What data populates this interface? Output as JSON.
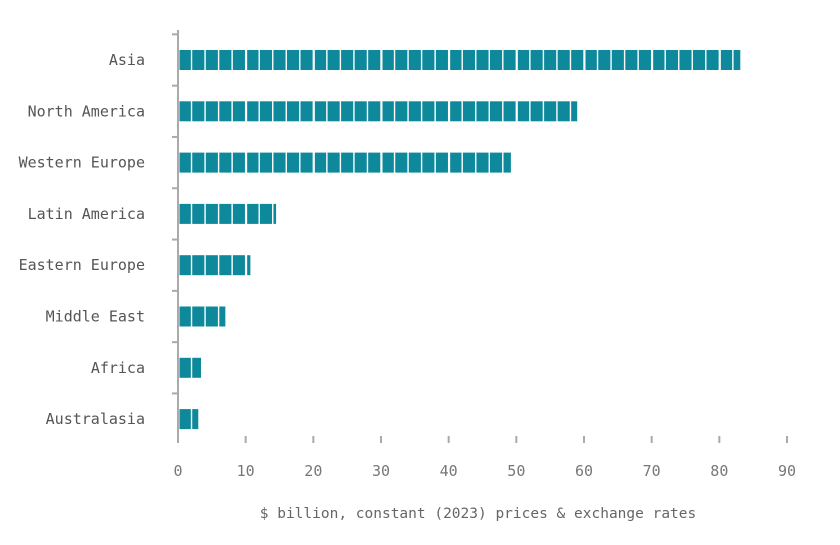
{
  "chart_data": {
    "type": "bar",
    "orientation": "horizontal",
    "title": "",
    "categories": [
      "Asia",
      "North America",
      "Western Europe",
      "Latin America",
      "Eastern Europe",
      "Middle East",
      "Africa",
      "Australasia"
    ],
    "values": [
      83.2,
      59.1,
      49.3,
      14.6,
      10.8,
      7.1,
      3.5,
      3.1
    ],
    "xlabel": "$ billion, constant (2023) prices & exchange rates",
    "ylabel": "",
    "xlim": [
      0,
      90
    ],
    "xticks": [
      "0",
      "10",
      "20",
      "30",
      "40",
      "50",
      "60",
      "70",
      "80",
      "90"
    ],
    "segment_unit": 2,
    "grid": false,
    "legend": "none",
    "colors": {
      "bar": "#0e899b",
      "axis": "#aaaaaa",
      "text": "#555555"
    }
  }
}
